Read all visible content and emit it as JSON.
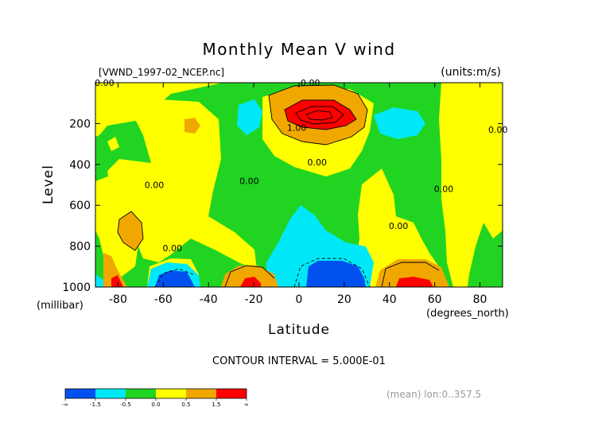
{
  "chart_data": {
    "type": "contour",
    "title": "Monthly Mean V wind",
    "file_label": "[VWND_1997-02_NCEP.nc]",
    "units_label": "(units:m/s)",
    "xlabel": "Latitude",
    "x_units": "(degrees_north)",
    "ylabel": "Level",
    "y_units": "(millibar)",
    "xlim": [
      -90,
      90
    ],
    "ylim": [
      0,
      1000
    ],
    "y_reversed": true,
    "x_ticks": [
      -80,
      -60,
      -40,
      -20,
      0,
      20,
      40,
      60,
      80
    ],
    "y_ticks": [
      200,
      400,
      600,
      800,
      1000
    ],
    "contour_interval_text": "CONTOUR INTERVAL = 5.000E-01",
    "footer_text": "(mean) lon:0..357.5",
    "contour_labels": [
      {
        "text": "0.00",
        "lat": -86,
        "level": 0
      },
      {
        "text": "0.00",
        "lat": 5,
        "level": 0
      },
      {
        "text": "1.00",
        "lat": -1,
        "level": 220
      },
      {
        "text": "0.00",
        "lat": 8,
        "level": 390
      },
      {
        "text": "0.00",
        "lat": -64,
        "level": 500
      },
      {
        "text": "0.00",
        "lat": -22,
        "level": 480
      },
      {
        "text": "0.00",
        "lat": 44,
        "level": 700
      },
      {
        "text": "0.00",
        "lat": 64,
        "level": 520
      },
      {
        "text": "0.00",
        "lat": 88,
        "level": 230
      },
      {
        "text": "0.00",
        "lat": -56,
        "level": 810
      }
    ],
    "colorbar": {
      "labels": [
        "-∞",
        "-1.5",
        "-0.5",
        "0.0",
        "0.5",
        "1.5",
        "∞"
      ],
      "colors": [
        "#0050f0",
        "#00e8f8",
        "#22d422",
        "#ffff00",
        "#f0a800",
        "#ff0000"
      ]
    },
    "fill_colors": {
      "strong_negative": "#0050f0",
      "negative": "#00e8f8",
      "near_zero_negative": "#22d422",
      "near_zero_positive": "#ffff00",
      "positive": "#f0a800",
      "strong_positive": "#ff0000"
    }
  }
}
